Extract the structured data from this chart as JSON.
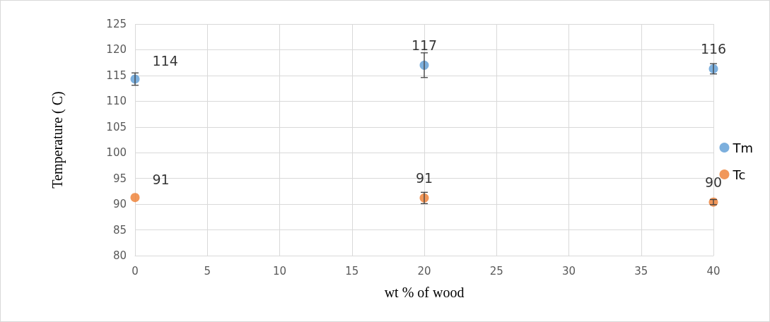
{
  "chart_data": {
    "type": "scatter",
    "xlabel": "wt % of wood",
    "ylabel": "Temperature ( C)",
    "x": [
      0,
      20,
      40
    ],
    "series": [
      {
        "name": "Tm",
        "color": "#5b9bd5",
        "values": [
          114.3,
          117.0,
          116.3
        ],
        "errors": [
          1.2,
          2.4,
          1.0
        ],
        "value_labels": [
          "114",
          "117",
          "116"
        ]
      },
      {
        "name": "Tc",
        "color": "#ed7d31",
        "values": [
          91.3,
          91.2,
          90.4
        ],
        "errors": [
          null,
          1.1,
          0.5
        ],
        "value_labels": [
          "91",
          "91",
          "90"
        ]
      }
    ],
    "xlim": [
      0,
      40
    ],
    "xticks": [
      0,
      5,
      10,
      15,
      20,
      25,
      30,
      35,
      40
    ],
    "ylim": [
      80,
      125
    ],
    "yticks": [
      80,
      85,
      90,
      95,
      100,
      105,
      110,
      115,
      120,
      125
    ],
    "grid": true,
    "legend": "right",
    "marker": "circle"
  }
}
